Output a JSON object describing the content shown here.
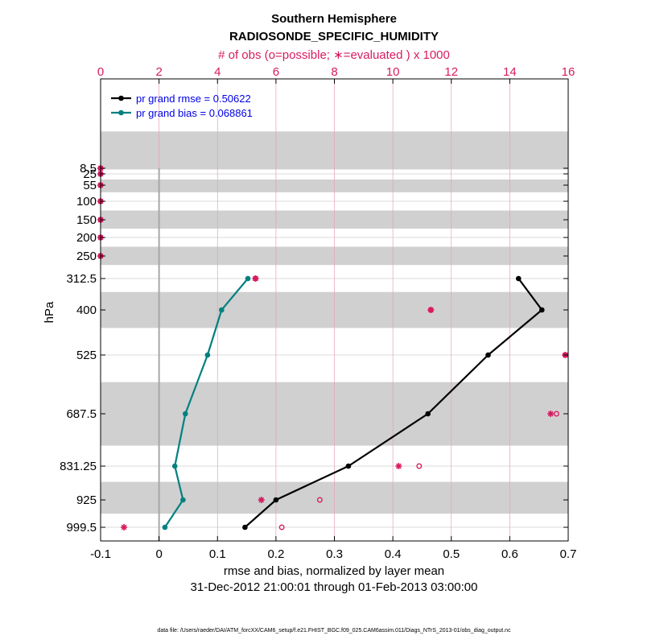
{
  "chart_data": {
    "type": "line",
    "title": "Southern Hemisphere",
    "subtitle": "RADIOSONDE_SPECIFIC_HUMIDITY",
    "top_xlabel": "# of obs (o=possible; ∗=evaluated ) x 1000",
    "xlabel": "rmse and bias, normalized by layer mean",
    "xlabel2": "31-Dec-2012 21:00:01 through 01-Feb-2013 03:00:00",
    "ylabel": "hPa",
    "xlim": [
      -0.1,
      0.7
    ],
    "xticks": [
      "-0.1",
      "0",
      "0.1",
      "0.2",
      "0.3",
      "0.4",
      "0.5",
      "0.6",
      "0.7"
    ],
    "top_xlim": [
      0,
      16
    ],
    "top_xticks": [
      "0",
      "2",
      "4",
      "6",
      "8",
      "10",
      "12",
      "14",
      "16"
    ],
    "levels": [
      8.5,
      25,
      55,
      100,
      150,
      200,
      250,
      312.5,
      400,
      525,
      687.5,
      831.25,
      925,
      999.5
    ],
    "level_labels": [
      "8.5",
      "25",
      "55",
      "100",
      "150",
      "200",
      "250",
      "312.5",
      "400",
      "525",
      "687.5",
      "831.25",
      "925",
      "999.5"
    ],
    "shaded_bands_hPa": [
      [
        5,
        12
      ],
      [
        40,
        75
      ],
      [
        125,
        175
      ],
      [
        225,
        275
      ],
      [
        350,
        450
      ],
      [
        600,
        775
      ],
      [
        875,
        962.5
      ]
    ],
    "series": [
      {
        "name": "pr grand rmse = 0.50622",
        "color": "#000000",
        "levels": [
          312.5,
          400,
          525,
          687.5,
          831.25,
          925,
          999.5
        ],
        "values": [
          0.615,
          0.655,
          0.563,
          0.46,
          0.324,
          0.2,
          0.147
        ]
      },
      {
        "name": "pr grand bias = 0.068861",
        "color": "#008080",
        "levels": [
          312.5,
          400,
          525,
          687.5,
          831.25,
          925,
          999.5
        ],
        "values": [
          0.152,
          0.107,
          0.083,
          0.045,
          0.027,
          0.041,
          0.01
        ]
      }
    ],
    "obs_possible": {
      "levels": [
        8.5,
        25,
        55,
        100,
        150,
        200,
        250,
        312.5,
        400,
        525,
        687.5,
        831.25,
        925,
        999.5
      ],
      "values": [
        0,
        0,
        0,
        0,
        0,
        0,
        0,
        5.3,
        11.3,
        15.9,
        15.6,
        10.9,
        7.5,
        6.2
      ]
    },
    "obs_evaluated": {
      "levels": [
        8.5,
        25,
        55,
        100,
        150,
        200,
        250,
        312.5,
        400,
        525,
        687.5,
        831.25,
        925,
        999.5
      ],
      "values": [
        0,
        0,
        0,
        0,
        0,
        0,
        0,
        5.3,
        11.3,
        15.9,
        15.4,
        10.2,
        5.5,
        0.8
      ]
    },
    "zero_line_x": 0
  },
  "footer": "data file: /Users/raeder/DAI/ATM_forcXX/CAM6_setup/f.e21.FHIST_BGC.f09_025.CAM6assim.011/Diags_NTrS_2013-01/obs_diag_output.nc",
  "colors": {
    "rmse": "#000000",
    "bias": "#008080",
    "obs": "#d81b60",
    "band": "#d0d0d0",
    "legend_text": "#0000e6"
  }
}
